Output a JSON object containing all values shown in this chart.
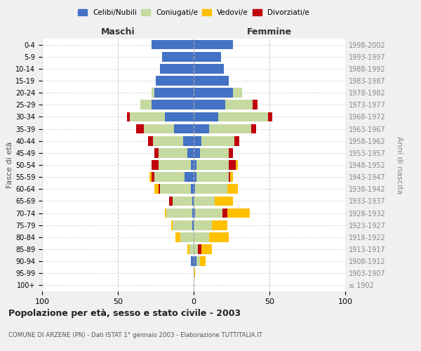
{
  "age_groups": [
    "100+",
    "95-99",
    "90-94",
    "85-89",
    "80-84",
    "75-79",
    "70-74",
    "65-69",
    "60-64",
    "55-59",
    "50-54",
    "45-49",
    "40-44",
    "35-39",
    "30-34",
    "25-29",
    "20-24",
    "15-19",
    "10-14",
    "5-9",
    "0-4"
  ],
  "birth_years": [
    "≤ 1902",
    "1903-1907",
    "1908-1912",
    "1913-1917",
    "1918-1922",
    "1923-1927",
    "1928-1932",
    "1933-1937",
    "1938-1942",
    "1943-1947",
    "1948-1952",
    "1953-1957",
    "1958-1962",
    "1963-1967",
    "1968-1972",
    "1973-1977",
    "1978-1982",
    "1983-1987",
    "1988-1992",
    "1993-1997",
    "1998-2002"
  ],
  "male": {
    "celibi": [
      0,
      0,
      2,
      0,
      0,
      1,
      1,
      1,
      2,
      6,
      2,
      4,
      7,
      13,
      19,
      28,
      26,
      25,
      22,
      21,
      28
    ],
    "coniugati": [
      0,
      0,
      0,
      3,
      9,
      13,
      17,
      13,
      20,
      20,
      21,
      19,
      20,
      20,
      23,
      7,
      2,
      0,
      0,
      0,
      0
    ],
    "vedovi": [
      0,
      0,
      0,
      1,
      3,
      1,
      1,
      0,
      3,
      1,
      0,
      0,
      0,
      0,
      0,
      0,
      0,
      0,
      0,
      0,
      0
    ],
    "divorziati": [
      0,
      0,
      0,
      0,
      0,
      0,
      0,
      2,
      1,
      2,
      5,
      3,
      3,
      5,
      2,
      0,
      0,
      0,
      0,
      0,
      0
    ]
  },
  "female": {
    "nubili": [
      0,
      0,
      2,
      0,
      0,
      0,
      1,
      0,
      1,
      2,
      2,
      4,
      5,
      10,
      16,
      21,
      26,
      23,
      20,
      18,
      26
    ],
    "coniugate": [
      0,
      0,
      2,
      3,
      10,
      12,
      18,
      14,
      21,
      21,
      21,
      19,
      22,
      28,
      33,
      18,
      6,
      0,
      0,
      0,
      0
    ],
    "vedove": [
      0,
      1,
      4,
      7,
      13,
      10,
      15,
      12,
      7,
      2,
      1,
      0,
      0,
      0,
      0,
      0,
      0,
      0,
      0,
      0,
      0
    ],
    "divorziate": [
      0,
      0,
      0,
      2,
      0,
      0,
      3,
      0,
      0,
      1,
      5,
      3,
      3,
      3,
      3,
      3,
      0,
      0,
      0,
      0,
      0
    ]
  },
  "colors": {
    "celibi": "#4472c4",
    "coniugati": "#c5d9a0",
    "vedovi": "#ffc000",
    "divorziati": "#c0000b"
  },
  "title": "Popolazione per età, sesso e stato civile - 2003",
  "subtitle": "COMUNE DI ARZENE (PN) - Dati ISTAT 1° gennaio 2003 - Elaborazione TUTTITALIA.IT",
  "xlabel_left": "Maschi",
  "xlabel_right": "Femmine",
  "ylabel_left": "Fasce di età",
  "ylabel_right": "Anni di nascita",
  "xlim": 100,
  "bg_color": "#f0f0f0",
  "plot_bg": "#ffffff",
  "grid_color": "#cccccc"
}
